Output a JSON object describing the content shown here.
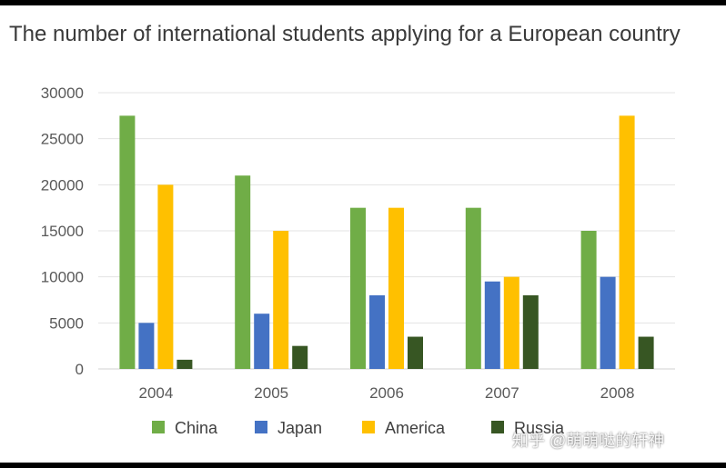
{
  "chart_data": {
    "type": "bar",
    "title": "The number of international students applying for a European country",
    "categories": [
      "2004",
      "2005",
      "2006",
      "2007",
      "2008"
    ],
    "series": [
      {
        "name": "China",
        "color": "#70ad47",
        "values": [
          27500,
          21000,
          17500,
          17500,
          15000
        ]
      },
      {
        "name": "Japan",
        "color": "#4472c4",
        "values": [
          5000,
          6000,
          8000,
          9500,
          10000
        ]
      },
      {
        "name": "America",
        "color": "#ffc000",
        "values": [
          20000,
          15000,
          17500,
          10000,
          27500
        ]
      },
      {
        "name": "Russia",
        "color": "#375623",
        "values": [
          1000,
          2500,
          3500,
          8000,
          3500
        ]
      }
    ],
    "ylim": [
      0,
      30000
    ],
    "yticks": [
      0,
      5000,
      10000,
      15000,
      20000,
      25000,
      30000
    ],
    "grid": true,
    "legend": "bottom"
  },
  "watermark": "知乎 @萌萌哒的轩神"
}
